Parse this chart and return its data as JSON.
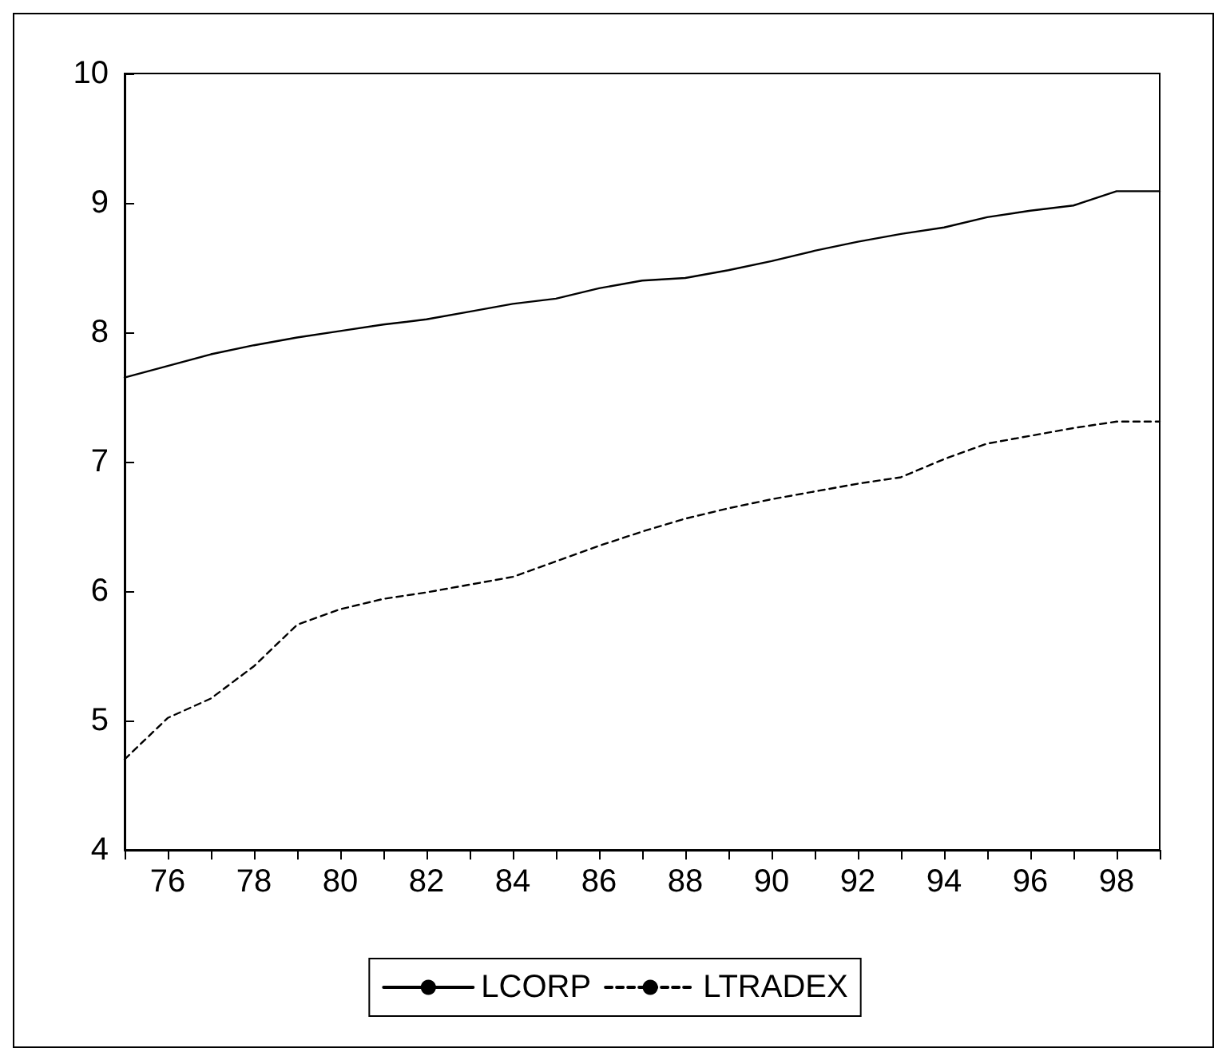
{
  "chart_data": {
    "type": "line",
    "categories": [
      null,
      "76",
      null,
      "78",
      null,
      "80",
      null,
      "82",
      null,
      "84",
      null,
      "86",
      null,
      "88",
      null,
      "90",
      null,
      "92",
      null,
      "94",
      null,
      "96",
      null,
      "98",
      null
    ],
    "series": [
      {
        "name": "LCORP",
        "color": "#000000",
        "line_style": "solid",
        "values": [
          7.65,
          7.74,
          7.83,
          7.9,
          7.96,
          8.01,
          8.06,
          8.1,
          8.16,
          8.22,
          8.26,
          8.34,
          8.4,
          8.42,
          8.48,
          8.55,
          8.63,
          8.7,
          8.76,
          8.81,
          8.89,
          8.94,
          8.98,
          9.09,
          9.09
        ]
      },
      {
        "name": "LTRADEX",
        "color": "#000000",
        "line_style": "dashed",
        "values": [
          4.7,
          5.02,
          5.17,
          5.42,
          5.74,
          5.86,
          5.94,
          5.99,
          6.05,
          6.11,
          6.23,
          6.35,
          6.46,
          6.56,
          6.64,
          6.71,
          6.77,
          6.83,
          6.88,
          7.02,
          7.14,
          7.2,
          7.26,
          7.31,
          7.31
        ]
      }
    ],
    "ylim": [
      4,
      10
    ],
    "yticks": [
      4,
      5,
      6,
      7,
      8,
      9,
      10
    ],
    "grid": false,
    "legend": "bottom",
    "marker": "none"
  }
}
